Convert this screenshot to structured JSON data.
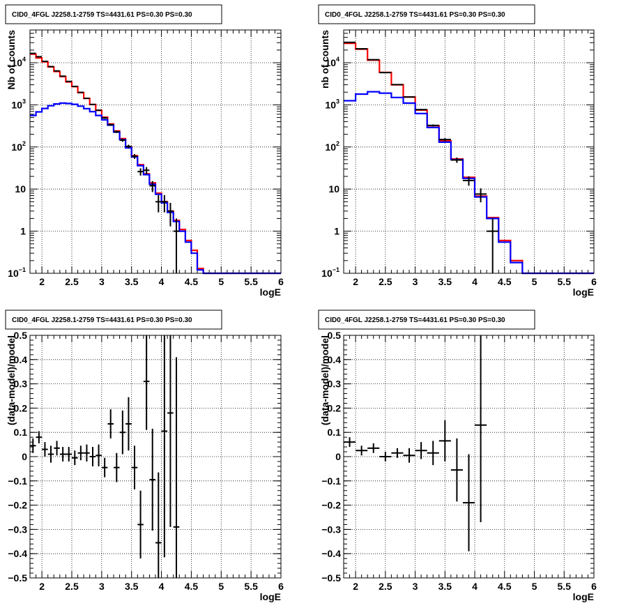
{
  "colors": {
    "data": "#000000",
    "model_total": "#ff0000",
    "model_source": "#0000ff",
    "grid": "#000000",
    "frame": "#000000",
    "background": "#ffffff"
  },
  "chart_data": [
    {
      "type": "line",
      "title": "CID0_4FGL J2258.1-2759 TS=4431.61 PS=0.30 PS=0.30",
      "xlabel": "logE",
      "ylabel": "Nb of counts",
      "xlim": [
        1.8,
        6.0
      ],
      "ylim": [
        0.1,
        60000
      ],
      "ylog": true,
      "grid": true,
      "xticks": [
        "2",
        "2.5",
        "3",
        "3.5",
        "4",
        "4.5",
        "5",
        "5.5",
        "6"
      ],
      "yticks": [
        {
          "v": 0.1,
          "base": "10",
          "exp": "−1"
        },
        {
          "v": 1,
          "base": "1",
          "exp": ""
        },
        {
          "v": 10,
          "base": "10",
          "exp": ""
        },
        {
          "v": 100,
          "base": "10",
          "exp": "2"
        },
        {
          "v": 1000,
          "base": "10",
          "exp": "3"
        },
        {
          "v": 10000,
          "base": "10",
          "exp": "4"
        }
      ],
      "bin_edges": [
        1.8,
        1.9,
        2.0,
        2.1,
        2.2,
        2.3,
        2.4,
        2.5,
        2.6,
        2.7,
        2.8,
        2.9,
        3.0,
        3.1,
        3.2,
        3.3,
        3.4,
        3.5,
        3.6,
        3.7,
        3.8,
        3.9,
        4.0,
        4.1,
        4.2,
        4.3,
        4.4,
        4.5,
        4.6,
        4.7,
        4.8,
        4.9,
        5.0,
        5.1,
        5.2,
        5.3,
        5.4,
        5.5,
        5.6,
        5.7,
        5.8,
        5.9,
        6.0
      ],
      "series": [
        {
          "values": [
            16000,
            13000,
            10500,
            8000,
            6200,
            4700,
            3500,
            2700,
            1950,
            1420,
            1020,
            740,
            510,
            350,
            240,
            158,
            100,
            62,
            38,
            23,
            14,
            8,
            5,
            3,
            1.8,
            1.1,
            0.6,
            0.35,
            0.13,
            0.1,
            0.1,
            0.1,
            0.1,
            0.1,
            0.1,
            0.1,
            0.1,
            0.1,
            0.1,
            0.1,
            0.1,
            0.1
          ]
        },
        {
          "values": [
            560,
            680,
            820,
            950,
            1050,
            1100,
            1080,
            1030,
            930,
            810,
            690,
            560,
            440,
            330,
            225,
            150,
            95,
            58,
            36,
            22,
            13,
            7.5,
            4.7,
            2.8,
            1.7,
            1.0,
            0.55,
            0.3,
            0.12,
            0.1,
            0.1,
            0.1,
            0.1,
            0.1,
            0.1,
            0.1,
            0.1,
            0.1,
            0.1,
            0.1,
            0.1,
            0.1
          ]
        }
      ],
      "points": [
        {
          "x": 1.85,
          "y": 16700,
          "e": 130
        },
        {
          "x": 1.95,
          "y": 13900,
          "e": 118
        },
        {
          "x": 2.05,
          "y": 10800,
          "e": 104
        },
        {
          "x": 2.15,
          "y": 8100,
          "e": 90
        },
        {
          "x": 2.25,
          "y": 6400,
          "e": 80
        },
        {
          "x": 2.35,
          "y": 4800,
          "e": 69
        },
        {
          "x": 2.45,
          "y": 3600,
          "e": 60
        },
        {
          "x": 2.55,
          "y": 2740,
          "e": 52
        },
        {
          "x": 2.65,
          "y": 1980,
          "e": 44
        },
        {
          "x": 2.75,
          "y": 1430,
          "e": 38
        },
        {
          "x": 2.85,
          "y": 1020,
          "e": 32
        },
        {
          "x": 2.95,
          "y": 745,
          "e": 27
        },
        {
          "x": 3.05,
          "y": 490,
          "e": 22
        },
        {
          "x": 3.15,
          "y": 340,
          "e": 18
        },
        {
          "x": 3.25,
          "y": 230,
          "e": 15
        },
        {
          "x": 3.35,
          "y": 145,
          "e": 12
        },
        {
          "x": 3.45,
          "y": 103,
          "e": 10
        },
        {
          "x": 3.55,
          "y": 60,
          "e": 7.7
        },
        {
          "x": 3.65,
          "y": 26,
          "e": 5.1
        },
        {
          "x": 3.75,
          "y": 28,
          "e": 5.3
        },
        {
          "x": 3.85,
          "y": 12,
          "e": 3.5
        },
        {
          "x": 3.95,
          "y": 5,
          "e": 2.2
        },
        {
          "x": 4.05,
          "y": 5,
          "e": 2.2
        },
        {
          "x": 4.15,
          "y": 3,
          "e": 1.7
        },
        {
          "x": 4.25,
          "y": 1,
          "e": 1.0
        }
      ]
    },
    {
      "type": "line",
      "title": "CID0_4FGL J2258.1-2759 TS=4431.61 PS=0.30 PS=0.30",
      "xlabel": "logE",
      "ylabel": "nb of counts",
      "xlim": [
        1.8,
        6.0
      ],
      "ylim": [
        0.1,
        60000
      ],
      "ylog": true,
      "grid": true,
      "xticks": [
        "2",
        "2.5",
        "3",
        "3.5",
        "4",
        "4.5",
        "5",
        "5.5",
        "6"
      ],
      "yticks": [
        {
          "v": 0.1,
          "base": "10",
          "exp": "−1"
        },
        {
          "v": 1,
          "base": "1",
          "exp": ""
        },
        {
          "v": 10,
          "base": "10",
          "exp": ""
        },
        {
          "v": 100,
          "base": "10",
          "exp": "2"
        },
        {
          "v": 1000,
          "base": "10",
          "exp": "3"
        },
        {
          "v": 10000,
          "base": "10",
          "exp": "4"
        }
      ],
      "bin_edges": [
        1.8,
        2.0,
        2.2,
        2.4,
        2.6,
        2.8,
        3.0,
        3.2,
        3.4,
        3.6,
        3.8,
        4.0,
        4.2,
        4.4,
        4.6,
        4.8,
        5.0,
        5.2,
        5.4,
        5.6,
        5.8,
        6.0
      ],
      "series": [
        {
          "values": [
            29000,
            21000,
            11500,
            5900,
            3000,
            1540,
            750,
            320,
            140,
            52,
            19,
            6.8,
            2.1,
            0.6,
            0.2,
            0.1,
            0.1,
            0.1,
            0.1,
            0.1,
            0.1
          ]
        },
        {
          "values": [
            1250,
            1800,
            2050,
            1900,
            1500,
            1100,
            620,
            290,
            130,
            50,
            18,
            6.5,
            2.0,
            0.55,
            0.18,
            0.1,
            0.1,
            0.1,
            0.1,
            0.1,
            0.1
          ]
        }
      ],
      "points": [
        {
          "x": 1.9,
          "y": 30500,
          "e": 175
        },
        {
          "x": 2.1,
          "y": 21400,
          "e": 146
        },
        {
          "x": 2.3,
          "y": 11800,
          "e": 109
        },
        {
          "x": 2.5,
          "y": 5850,
          "e": 76
        },
        {
          "x": 2.7,
          "y": 3030,
          "e": 55
        },
        {
          "x": 2.9,
          "y": 1540,
          "e": 39
        },
        {
          "x": 3.1,
          "y": 770,
          "e": 28
        },
        {
          "x": 3.3,
          "y": 325,
          "e": 18
        },
        {
          "x": 3.5,
          "y": 150,
          "e": 12
        },
        {
          "x": 3.7,
          "y": 49,
          "e": 7
        },
        {
          "x": 3.9,
          "y": 16,
          "e": 4
        },
        {
          "x": 4.1,
          "y": 7.6,
          "e": 2.75
        },
        {
          "x": 4.3,
          "y": 1,
          "e": 1.0
        }
      ]
    },
    {
      "type": "scatter",
      "title": "CID0_4FGL J2258.1-2759 TS=4431.61 PS=0.30 PS=0.30",
      "xlabel": "logE",
      "ylabel": "(data-model)/model",
      "xlim": [
        1.8,
        6.0
      ],
      "ylim": [
        -0.5,
        0.5
      ],
      "ylog": false,
      "grid": true,
      "xticks": [
        "2",
        "2.5",
        "3",
        "3.5",
        "4",
        "4.5",
        "5",
        "5.5",
        "6"
      ],
      "yticks": [
        "−0.5",
        "−0.4",
        "−0.3",
        "−0.2",
        "−0.1",
        "0",
        "0.1",
        "0.2",
        "0.3",
        "0.4",
        "0.5"
      ],
      "xerr": 0.05,
      "points": [
        {
          "x": 1.85,
          "y": 0.045,
          "e": 0.03
        },
        {
          "x": 1.95,
          "y": 0.08,
          "e": 0.025
        },
        {
          "x": 2.05,
          "y": 0.03,
          "e": 0.03
        },
        {
          "x": 2.15,
          "y": 0.01,
          "e": 0.035
        },
        {
          "x": 2.25,
          "y": 0.035,
          "e": 0.03
        },
        {
          "x": 2.35,
          "y": 0.01,
          "e": 0.03
        },
        {
          "x": 2.45,
          "y": 0.01,
          "e": 0.03
        },
        {
          "x": 2.55,
          "y": -0.005,
          "e": 0.03
        },
        {
          "x": 2.65,
          "y": 0.015,
          "e": 0.03
        },
        {
          "x": 2.75,
          "y": 0.015,
          "e": 0.035
        },
        {
          "x": 2.85,
          "y": 0.0,
          "e": 0.04
        },
        {
          "x": 2.95,
          "y": 0.005,
          "e": 0.045
        },
        {
          "x": 3.05,
          "y": -0.045,
          "e": 0.04
        },
        {
          "x": 3.15,
          "y": 0.135,
          "e": 0.06
        },
        {
          "x": 3.25,
          "y": -0.045,
          "e": 0.06
        },
        {
          "x": 3.35,
          "y": 0.1,
          "e": 0.09
        },
        {
          "x": 3.45,
          "y": 0.135,
          "e": 0.11
        },
        {
          "x": 3.55,
          "y": -0.045,
          "e": 0.09
        },
        {
          "x": 3.65,
          "y": -0.28,
          "e": 0.14
        },
        {
          "x": 3.75,
          "y": 0.31,
          "e": 0.2
        },
        {
          "x": 3.85,
          "y": -0.095,
          "e": 0.21
        },
        {
          "x": 3.95,
          "y": -0.355,
          "e": 0.29
        },
        {
          "x": 4.05,
          "y": 0.105,
          "e": 0.52
        },
        {
          "x": 4.15,
          "y": 0.18,
          "e": 0.47
        },
        {
          "x": 4.25,
          "y": -0.29,
          "e": 0.7
        }
      ]
    },
    {
      "type": "scatter",
      "title": "CID0_4FGL J2258.1-2759 TS=4431.61 PS=0.30 PS=0.30",
      "xlabel": "logE",
      "ylabel": "(data-model)/model",
      "xlim": [
        1.8,
        6.0
      ],
      "ylim": [
        -0.5,
        0.5
      ],
      "ylog": false,
      "grid": true,
      "xticks": [
        "2",
        "2.5",
        "3",
        "3.5",
        "4",
        "4.5",
        "5",
        "5.5",
        "6"
      ],
      "yticks": [
        "−0.5",
        "−0.4",
        "−0.3",
        "−0.2",
        "−0.1",
        "0",
        "0.1",
        "0.2",
        "0.3",
        "0.4",
        "0.5"
      ],
      "xerr": 0.1,
      "points": [
        {
          "x": 1.9,
          "y": 0.06,
          "e": 0.02
        },
        {
          "x": 2.1,
          "y": 0.025,
          "e": 0.02
        },
        {
          "x": 2.3,
          "y": 0.035,
          "e": 0.02
        },
        {
          "x": 2.5,
          "y": 0.0,
          "e": 0.02
        },
        {
          "x": 2.7,
          "y": 0.015,
          "e": 0.02
        },
        {
          "x": 2.9,
          "y": 0.005,
          "e": 0.03
        },
        {
          "x": 3.1,
          "y": 0.025,
          "e": 0.035
        },
        {
          "x": 3.3,
          "y": 0.015,
          "e": 0.05
        },
        {
          "x": 3.5,
          "y": 0.065,
          "e": 0.085
        },
        {
          "x": 3.7,
          "y": -0.055,
          "e": 0.13
        },
        {
          "x": 3.9,
          "y": -0.19,
          "e": 0.2
        },
        {
          "x": 4.1,
          "y": 0.13,
          "e": 0.4
        }
      ]
    }
  ]
}
